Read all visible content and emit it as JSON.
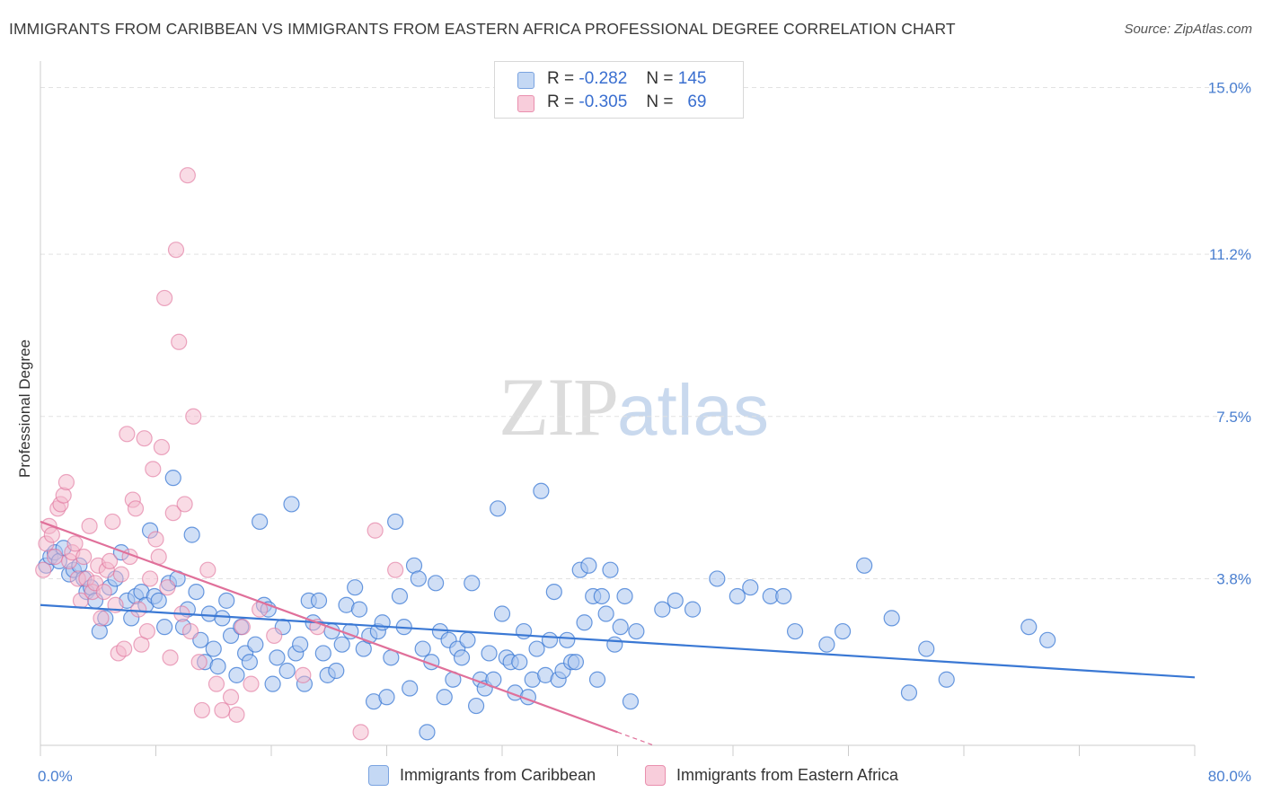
{
  "title": "IMMIGRANTS FROM CARIBBEAN VS IMMIGRANTS FROM EASTERN AFRICA PROFESSIONAL DEGREE CORRELATION CHART",
  "source": "Source: ZipAtlas.com",
  "watermark": {
    "zip": "ZIP",
    "atlas": "atlas"
  },
  "colors": {
    "blue": "#3a78d4",
    "pink": "#e0709a",
    "blue_fill": "#a9c5ee",
    "pink_fill": "#f4b7cb",
    "tick": "#4a7fd0",
    "grid": "#e2e2e2"
  },
  "legend_top": [
    {
      "r_label": "R =",
      "r_value": "-0.282",
      "n_label": "N =",
      "n_value": "145",
      "color": "#a9c5ee"
    },
    {
      "r_label": "R =",
      "r_value": "-0.305",
      "n_label": "N =",
      "n_value": "69",
      "color": "#f4b7cb"
    }
  ],
  "legend_bottom": [
    {
      "label": "Immigrants from Caribbean",
      "color": "#a9c5ee"
    },
    {
      "label": "Immigrants from Eastern Africa",
      "color": "#f4b7cb"
    }
  ],
  "chart_data": {
    "type": "scatter",
    "title": "IMMIGRANTS FROM CARIBBEAN VS IMMIGRANTS FROM EASTERN AFRICA PROFESSIONAL DEGREE CORRELATION CHART",
    "xlabel": "",
    "ylabel": "Professional Degree",
    "xlim": [
      0,
      80
    ],
    "ylim": [
      0,
      15.4
    ],
    "y_ticks": [
      3.8,
      7.5,
      11.2,
      15.0
    ],
    "y_tick_labels": [
      "3.8%",
      "7.5%",
      "11.2%",
      "15.0%"
    ],
    "x_tick_labels": [
      "0.0%",
      "80.0%"
    ],
    "grid": true,
    "legend_position": "top-center",
    "series": [
      {
        "name": "Immigrants from Caribbean",
        "color": "#3a78d4",
        "trend": {
          "x": [
            0,
            80
          ],
          "y": [
            3.2,
            1.55
          ]
        },
        "points": [
          [
            0.4,
            4.1
          ],
          [
            0.7,
            4.3
          ],
          [
            1.0,
            4.4
          ],
          [
            1.3,
            4.2
          ],
          [
            1.6,
            4.5
          ],
          [
            2.0,
            3.9
          ],
          [
            2.3,
            4.0
          ],
          [
            2.7,
            4.1
          ],
          [
            3.0,
            3.8
          ],
          [
            3.2,
            3.5
          ],
          [
            3.5,
            3.6
          ],
          [
            3.8,
            3.3
          ],
          [
            4.1,
            2.6
          ],
          [
            4.5,
            2.9
          ],
          [
            4.8,
            3.6
          ],
          [
            5.2,
            3.8
          ],
          [
            5.6,
            4.4
          ],
          [
            6.0,
            3.3
          ],
          [
            6.3,
            2.9
          ],
          [
            6.6,
            3.4
          ],
          [
            7.0,
            3.5
          ],
          [
            7.3,
            3.2
          ],
          [
            7.6,
            4.9
          ],
          [
            7.9,
            3.4
          ],
          [
            8.2,
            3.3
          ],
          [
            8.6,
            2.7
          ],
          [
            8.9,
            3.7
          ],
          [
            9.2,
            6.1
          ],
          [
            9.5,
            3.8
          ],
          [
            9.9,
            2.7
          ],
          [
            10.2,
            3.1
          ],
          [
            10.5,
            4.8
          ],
          [
            10.8,
            3.5
          ],
          [
            11.1,
            2.4
          ],
          [
            11.4,
            1.9
          ],
          [
            11.7,
            3.0
          ],
          [
            12.0,
            2.2
          ],
          [
            12.3,
            1.8
          ],
          [
            12.6,
            2.9
          ],
          [
            12.9,
            3.3
          ],
          [
            13.2,
            2.5
          ],
          [
            13.6,
            1.6
          ],
          [
            13.9,
            2.7
          ],
          [
            14.2,
            2.1
          ],
          [
            14.5,
            1.9
          ],
          [
            14.9,
            2.3
          ],
          [
            15.2,
            5.1
          ],
          [
            15.5,
            3.2
          ],
          [
            15.8,
            3.1
          ],
          [
            16.1,
            1.4
          ],
          [
            16.4,
            2.0
          ],
          [
            16.8,
            2.7
          ],
          [
            17.1,
            1.7
          ],
          [
            17.4,
            5.5
          ],
          [
            17.7,
            2.1
          ],
          [
            18.0,
            2.3
          ],
          [
            18.3,
            1.4
          ],
          [
            18.6,
            3.3
          ],
          [
            18.9,
            2.8
          ],
          [
            19.3,
            3.3
          ],
          [
            19.6,
            2.1
          ],
          [
            19.9,
            1.6
          ],
          [
            20.2,
            2.6
          ],
          [
            20.5,
            1.7
          ],
          [
            20.9,
            2.3
          ],
          [
            21.2,
            3.2
          ],
          [
            21.5,
            2.6
          ],
          [
            21.8,
            3.6
          ],
          [
            22.1,
            3.1
          ],
          [
            22.4,
            2.2
          ],
          [
            22.8,
            2.5
          ],
          [
            23.1,
            1.0
          ],
          [
            23.4,
            2.6
          ],
          [
            23.7,
            2.8
          ],
          [
            24.0,
            1.1
          ],
          [
            24.3,
            2.0
          ],
          [
            24.6,
            5.1
          ],
          [
            24.9,
            3.4
          ],
          [
            25.2,
            2.7
          ],
          [
            25.6,
            1.3
          ],
          [
            25.9,
            4.1
          ],
          [
            26.2,
            3.8
          ],
          [
            26.5,
            2.2
          ],
          [
            26.8,
            0.3
          ],
          [
            27.1,
            1.9
          ],
          [
            27.4,
            3.7
          ],
          [
            27.7,
            2.6
          ],
          [
            28.0,
            1.1
          ],
          [
            28.3,
            2.4
          ],
          [
            28.6,
            1.5
          ],
          [
            28.9,
            2.2
          ],
          [
            29.2,
            2.0
          ],
          [
            29.6,
            2.4
          ],
          [
            29.9,
            3.7
          ],
          [
            30.2,
            0.9
          ],
          [
            30.5,
            1.5
          ],
          [
            30.8,
            1.3
          ],
          [
            31.1,
            2.1
          ],
          [
            31.4,
            1.5
          ],
          [
            31.7,
            5.4
          ],
          [
            32.0,
            3.0
          ],
          [
            32.3,
            2.0
          ],
          [
            32.6,
            1.9
          ],
          [
            32.9,
            1.2
          ],
          [
            33.2,
            1.9
          ],
          [
            33.5,
            2.6
          ],
          [
            33.8,
            1.1
          ],
          [
            34.1,
            1.5
          ],
          [
            34.4,
            2.2
          ],
          [
            34.7,
            5.8
          ],
          [
            35.0,
            1.6
          ],
          [
            35.3,
            2.4
          ],
          [
            35.6,
            3.5
          ],
          [
            35.9,
            1.5
          ],
          [
            36.2,
            1.7
          ],
          [
            36.5,
            2.4
          ],
          [
            36.8,
            1.9
          ],
          [
            37.1,
            1.9
          ],
          [
            37.4,
            4.0
          ],
          [
            37.7,
            2.8
          ],
          [
            38.0,
            4.1
          ],
          [
            38.3,
            3.4
          ],
          [
            38.6,
            1.5
          ],
          [
            38.9,
            3.4
          ],
          [
            39.2,
            3.0
          ],
          [
            39.5,
            4.0
          ],
          [
            39.8,
            2.3
          ],
          [
            40.2,
            2.7
          ],
          [
            40.5,
            3.4
          ],
          [
            40.9,
            1.0
          ],
          [
            41.3,
            2.6
          ],
          [
            43.1,
            3.1
          ],
          [
            44.0,
            3.3
          ],
          [
            45.2,
            3.1
          ],
          [
            46.9,
            3.8
          ],
          [
            48.3,
            3.4
          ],
          [
            49.2,
            3.6
          ],
          [
            50.6,
            3.4
          ],
          [
            51.5,
            3.4
          ],
          [
            52.3,
            2.6
          ],
          [
            54.5,
            2.3
          ],
          [
            55.6,
            2.6
          ],
          [
            57.1,
            4.1
          ],
          [
            59.0,
            2.9
          ],
          [
            60.2,
            1.2
          ],
          [
            61.4,
            2.2
          ],
          [
            62.8,
            1.5
          ],
          [
            68.5,
            2.7
          ],
          [
            69.8,
            2.4
          ]
        ]
      },
      {
        "name": "Immigrants from Eastern Africa",
        "color": "#e0709a",
        "trend": {
          "x": [
            0,
            40
          ],
          "y": [
            5.1,
            0.3
          ]
        },
        "points": [
          [
            0.2,
            4.0
          ],
          [
            0.4,
            4.6
          ],
          [
            0.6,
            5.0
          ],
          [
            0.8,
            4.8
          ],
          [
            1.0,
            4.3
          ],
          [
            1.2,
            5.4
          ],
          [
            1.4,
            5.5
          ],
          [
            1.6,
            5.7
          ],
          [
            1.8,
            6.0
          ],
          [
            2.0,
            4.2
          ],
          [
            2.2,
            4.4
          ],
          [
            2.4,
            4.6
          ],
          [
            2.6,
            3.8
          ],
          [
            2.8,
            3.3
          ],
          [
            3.0,
            4.3
          ],
          [
            3.2,
            3.8
          ],
          [
            3.4,
            5.0
          ],
          [
            3.6,
            3.5
          ],
          [
            3.8,
            3.7
          ],
          [
            4.0,
            4.1
          ],
          [
            4.2,
            2.9
          ],
          [
            4.4,
            3.5
          ],
          [
            4.6,
            4.0
          ],
          [
            4.8,
            4.2
          ],
          [
            5.0,
            5.1
          ],
          [
            5.2,
            3.2
          ],
          [
            5.4,
            2.1
          ],
          [
            5.6,
            3.9
          ],
          [
            5.8,
            2.2
          ],
          [
            6.0,
            7.1
          ],
          [
            6.2,
            4.3
          ],
          [
            6.4,
            5.6
          ],
          [
            6.6,
            5.4
          ],
          [
            6.8,
            3.1
          ],
          [
            7.0,
            2.3
          ],
          [
            7.2,
            7.0
          ],
          [
            7.4,
            2.6
          ],
          [
            7.6,
            3.8
          ],
          [
            7.8,
            6.3
          ],
          [
            8.0,
            4.7
          ],
          [
            8.2,
            4.3
          ],
          [
            8.4,
            6.8
          ],
          [
            8.6,
            10.2
          ],
          [
            8.8,
            3.6
          ],
          [
            9.0,
            2.0
          ],
          [
            9.2,
            5.3
          ],
          [
            9.4,
            11.3
          ],
          [
            9.6,
            9.2
          ],
          [
            9.8,
            3.0
          ],
          [
            10.0,
            5.5
          ],
          [
            10.2,
            13.0
          ],
          [
            10.4,
            2.6
          ],
          [
            10.6,
            7.5
          ],
          [
            11.0,
            1.9
          ],
          [
            11.2,
            0.8
          ],
          [
            11.6,
            4.0
          ],
          [
            12.2,
            1.4
          ],
          [
            12.6,
            0.8
          ],
          [
            13.2,
            1.1
          ],
          [
            13.6,
            0.7
          ],
          [
            14.0,
            2.7
          ],
          [
            14.6,
            1.4
          ],
          [
            15.2,
            3.1
          ],
          [
            16.2,
            2.5
          ],
          [
            18.2,
            1.6
          ],
          [
            19.2,
            2.7
          ],
          [
            22.2,
            0.3
          ],
          [
            23.2,
            4.9
          ],
          [
            24.6,
            4.0
          ]
        ]
      }
    ]
  }
}
